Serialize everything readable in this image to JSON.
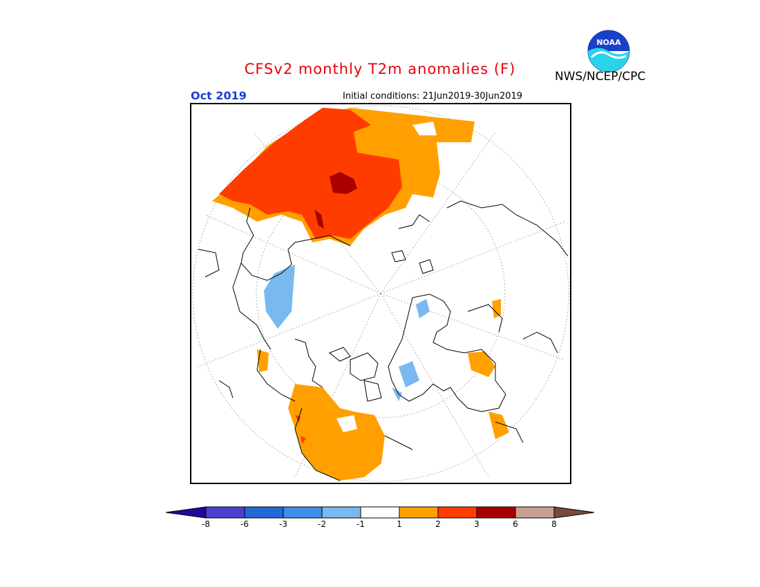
{
  "header": {
    "title": "CFSv2 monthly T2m anomalies (F)",
    "agency": "NWS/NCEP/CPC",
    "valid_month": "Oct 2019",
    "initial_conditions": "Initial conditions: 21Jun2019-30Jun2019",
    "logo_text": "NOAA"
  },
  "colors": {
    "title": "#e8000b",
    "valid_month": "#1c3ed6",
    "map_border": "#000000",
    "graticule": "#9a9a9a"
  },
  "colorbar": {
    "ticks": [
      "-8",
      "-6",
      "-3",
      "-2",
      "-1",
      "1",
      "2",
      "3",
      "6",
      "8"
    ],
    "colors": [
      "#1e0a9e",
      "#4b3fd0",
      "#2567d6",
      "#3d8ee6",
      "#7ab8f0",
      "#ffffff",
      "#ffa000",
      "#ff3c00",
      "#a80000",
      "#c8a094",
      "#7a4a3a"
    ]
  },
  "map": {
    "projection": "north-polar-stereographic",
    "anomaly_colors": {
      "warm_1_2": "#ffa000",
      "warm_2_3": "#ff3c00",
      "warm_3_6": "#a80000",
      "cool_1_2": "#7ab8f0"
    }
  }
}
